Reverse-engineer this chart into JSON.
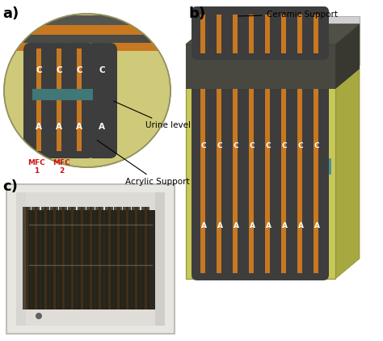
{
  "fig_width": 4.74,
  "fig_height": 4.22,
  "dpi": 100,
  "bg_color": "#ffffff",
  "colors": {
    "dark_gray": "#3d3d3d",
    "dark_gray2": "#4a4a42",
    "orange": "#c87820",
    "yellow_green": "#c8c858",
    "yellow_green_dark": "#a8a840",
    "yellow_green_side": "#b0b048",
    "light_olive": "#d0d070",
    "teal": "#407878",
    "teal2": "#509090",
    "light_gray": "#d0d0d0",
    "lighter_gray": "#e0e0e0",
    "white": "#ffffff",
    "red_label": "#cc1111",
    "black": "#000000",
    "photo_bg": "#303025",
    "photo_frame": "#e8e8e0",
    "copper": "#b05820",
    "dark_electrode": "#252520"
  },
  "panel_a_label": "a)",
  "panel_b_label": "b)",
  "panel_c_label": "c)",
  "ceramic_support_text": "Ceramic Support",
  "urine_level_text": "Urine level",
  "acrylic_support_text": "Acrylic Support",
  "mfc1_text": "MFC\n1",
  "mfc2_text": "MFC\n2"
}
